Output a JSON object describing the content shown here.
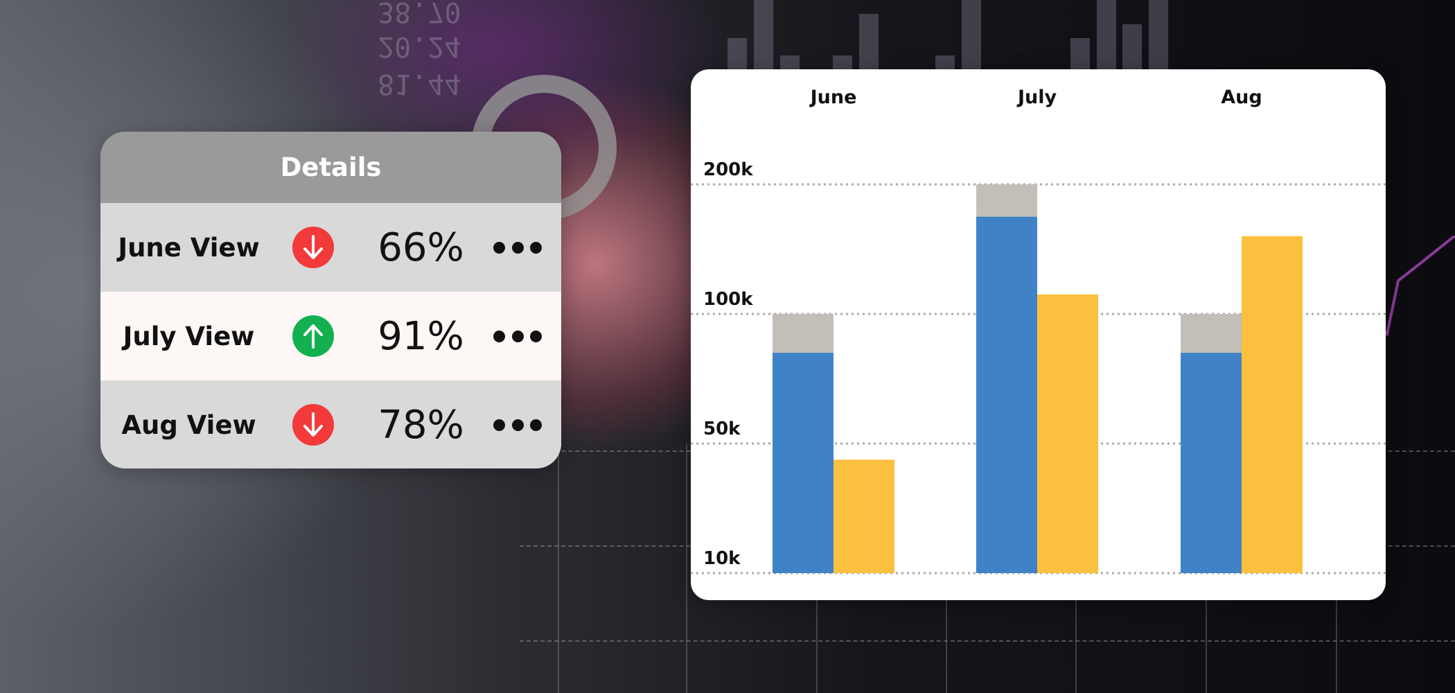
{
  "details": {
    "title": "Details",
    "rows": [
      {
        "label": "June View",
        "value": "66%",
        "trend": "down",
        "trend_color": "#f23a3a"
      },
      {
        "label": "July View",
        "value": "91%",
        "trend": "up",
        "trend_color": "#12b04f"
      },
      {
        "label": "Aug View",
        "value": "78%",
        "trend": "down",
        "trend_color": "#f23a3a"
      }
    ],
    "more_icon": "more-horizontal-icon"
  },
  "chart_data": {
    "type": "bar",
    "categories": [
      "June",
      "July",
      "Aug"
    ],
    "y_ticks": [
      "10k",
      "50k",
      "100k",
      "200k"
    ],
    "scale": "non-linear, ticks evenly spaced",
    "grid": "horizontal dotted",
    "series": [
      {
        "values": [
          85000,
          175000,
          85000
        ],
        "color": "#3f83c6"
      },
      {
        "values": [
          100000,
          200000,
          100000
        ],
        "color": "#c3bfb8",
        "note": "stacked total on blue bar"
      },
      {
        "values": [
          45000,
          115000,
          160000
        ],
        "color": "#fbc03d"
      }
    ]
  },
  "background": {
    "numbers": [
      "38.70",
      "20.24",
      "81.44"
    ]
  }
}
